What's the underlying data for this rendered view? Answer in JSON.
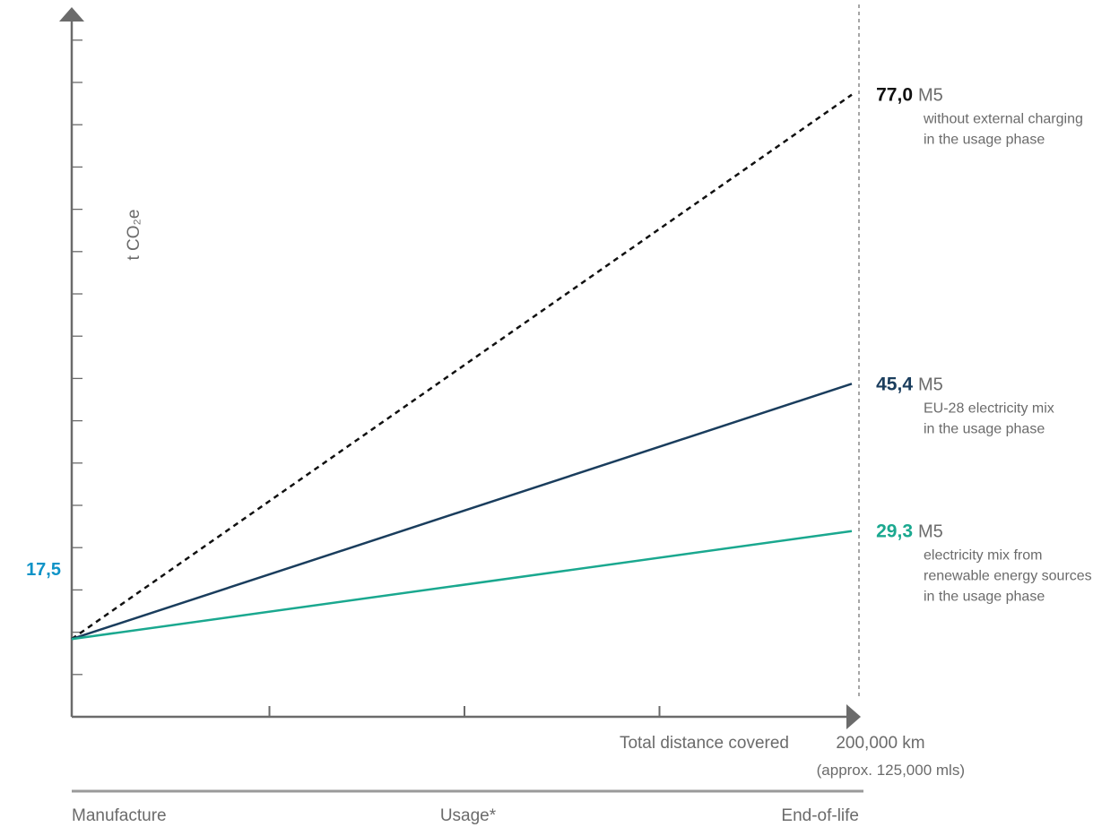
{
  "chart_data": {
    "type": "line",
    "ylabel": "t CO₂e",
    "xlabel": "Total distance covered",
    "x_end_label": "200,000 km",
    "x_end_sublabel": "(approx. 125,000 mls)",
    "x": [
      0,
      200000
    ],
    "ylim": [
      9,
      85
    ],
    "y_ticks_count": 16,
    "x_ticks_count": 3,
    "start_label": "17,5",
    "series": [
      {
        "key": "no-charging",
        "values": [
          17.5,
          77.0
        ],
        "end_label": "77,0",
        "model": "M5",
        "desc": [
          "without external charging",
          "in the usage phase"
        ],
        "color": "#111111",
        "dashed": true
      },
      {
        "key": "eu28",
        "values": [
          17.5,
          45.4
        ],
        "end_label": "45,4",
        "model": "M5",
        "desc": [
          "EU-28 electricity mix",
          "in the usage phase"
        ],
        "color": "#1a3d5d",
        "dashed": false
      },
      {
        "key": "renewable",
        "values": [
          17.5,
          29.3
        ],
        "end_label": "29,3",
        "model": "M5",
        "desc": [
          "electricity mix from",
          "renewable energy sources",
          "in the usage phase"
        ],
        "color": "#1aa88f",
        "dashed": false
      }
    ],
    "colors": {
      "start_label": "#0e93c7",
      "axis": "#6b6b6b"
    }
  },
  "phases": [
    "Manufacture",
    "Usage*",
    "End-of-life"
  ]
}
